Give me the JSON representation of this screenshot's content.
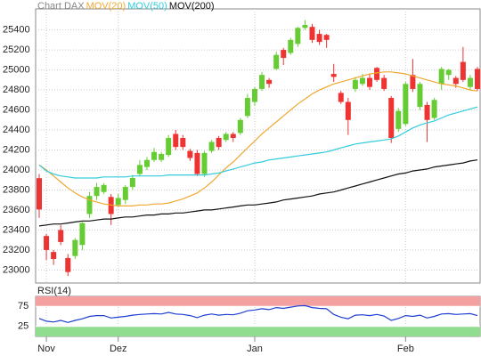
{
  "chart_data": [
    {
      "type": "candlestick",
      "title": "Chart DAX",
      "categories": [
        null,
        "Nov",
        null,
        null,
        null,
        null,
        null,
        null,
        null,
        null,
        null,
        "Dez",
        null,
        null,
        null,
        null,
        null,
        null,
        null,
        null,
        null,
        null,
        null,
        null,
        null,
        null,
        null,
        null,
        null,
        null,
        "Jan",
        null,
        null,
        null,
        null,
        null,
        null,
        null,
        null,
        null,
        null,
        null,
        null,
        null,
        null,
        null,
        null,
        null,
        null,
        null,
        null,
        "Feb",
        null,
        null,
        null,
        null,
        null,
        null,
        null,
        null,
        null,
        null
      ],
      "open": [
        23918,
        23340,
        23180,
        23400,
        23120,
        23140,
        23250,
        23560,
        23740,
        23780,
        23730,
        23650,
        23700,
        23830,
        23960,
        24030,
        24100,
        24100,
        24150,
        24360,
        24320,
        24190,
        24170,
        23960,
        24190,
        24320,
        24300,
        24360,
        24370,
        24540,
        24680,
        24810,
        24900,
        25010,
        25200,
        25170,
        25260,
        25420,
        25430,
        25360,
        25350,
        24960,
        24770,
        24680,
        24810,
        24860,
        24920,
        25020,
        24920,
        24720,
        24410,
        24460,
        24950,
        24630,
        24650,
        24520,
        24860,
        24950,
        24920,
        25080,
        24830,
        25010
      ],
      "high": [
        23960,
        23360,
        23200,
        23450,
        23160,
        23320,
        23480,
        23780,
        23870,
        23870,
        23760,
        23760,
        23850,
        23950,
        24100,
        24130,
        24220,
        24180,
        24350,
        24400,
        24350,
        24210,
        24200,
        24190,
        24300,
        24340,
        24380,
        24380,
        24520,
        24760,
        24830,
        24980,
        24920,
        25180,
        25220,
        25320,
        25430,
        25500,
        25460,
        25400,
        25360,
        25060,
        24790,
        24720,
        24930,
        24960,
        24960,
        25030,
        24950,
        24740,
        24620,
        24880,
        25110,
        24880,
        24680,
        24720,
        25030,
        25010,
        24940,
        25230,
        24950,
        25030
      ],
      "low": [
        23520,
        23100,
        23050,
        23250,
        22940,
        23110,
        23200,
        23520,
        23700,
        23760,
        23450,
        23630,
        23660,
        23800,
        23940,
        24000,
        24080,
        24080,
        24130,
        24200,
        24200,
        24090,
        23940,
        23930,
        24170,
        24200,
        24280,
        24280,
        24350,
        24520,
        24640,
        24790,
        24820,
        25000,
        25050,
        25150,
        25230,
        25400,
        25270,
        25250,
        25220,
        24880,
        24660,
        24350,
        24780,
        24840,
        24800,
        24880,
        24790,
        24270,
        24380,
        24440,
        24780,
        24600,
        24280,
        24500,
        24800,
        24900,
        24820,
        24880,
        24800,
        24790
      ],
      "close": [
        23605,
        23200,
        23110,
        23280,
        22980,
        23300,
        23470,
        23740,
        23830,
        23850,
        23560,
        23720,
        23830,
        23920,
        24050,
        24100,
        24180,
        24160,
        24320,
        24230,
        24230,
        24120,
        23960,
        24170,
        24280,
        24230,
        24360,
        24320,
        24500,
        24720,
        24810,
        24950,
        24860,
        25150,
        25120,
        25300,
        25420,
        25450,
        25300,
        25280,
        25300,
        24930,
        24680,
        24500,
        24900,
        24920,
        24830,
        24900,
        24810,
        24320,
        24590,
        24860,
        24810,
        24860,
        24500,
        24700,
        25010,
        25000,
        24860,
        24900,
        24920,
        24810
      ],
      "up_color": "#66cc33",
      "down_color": "#ee3333",
      "series": [
        {
          "name": "MOV(20)",
          "color": "#f0a830",
          "values": [
            24050,
            24000,
            23940,
            23880,
            23820,
            23770,
            23730,
            23700,
            23680,
            23660,
            23650,
            23640,
            23640,
            23640,
            23650,
            23650,
            23660,
            23660,
            23670,
            23690,
            23710,
            23740,
            23770,
            23820,
            23880,
            23950,
            24020,
            24080,
            24150,
            24220,
            24290,
            24360,
            24420,
            24480,
            24540,
            24600,
            24660,
            24710,
            24760,
            24800,
            24830,
            24860,
            24880,
            24900,
            24920,
            24940,
            24960,
            24970,
            24980,
            24980,
            24970,
            24960,
            24940,
            24920,
            24900,
            24880,
            24860,
            24850,
            24840,
            24820,
            24800,
            24790
          ]
        },
        {
          "name": "MOV(50)",
          "color": "#33ccdd",
          "values": [
            24050,
            23990,
            23960,
            23940,
            23930,
            23920,
            23920,
            23920,
            23920,
            23930,
            23930,
            23930,
            23930,
            23940,
            23940,
            23940,
            23940,
            23940,
            23950,
            23950,
            23950,
            23950,
            23950,
            23950,
            23960,
            23970,
            23990,
            24010,
            24030,
            24050,
            24070,
            24080,
            24100,
            24110,
            24120,
            24130,
            24140,
            24150,
            24160,
            24170,
            24180,
            24200,
            24220,
            24240,
            24260,
            24270,
            24280,
            24290,
            24300,
            24310,
            24340,
            24380,
            24420,
            24450,
            24470,
            24490,
            24520,
            24550,
            24570,
            24590,
            24610,
            24630
          ]
        },
        {
          "name": "MOV(200)",
          "color": "#111111",
          "values": [
            23440,
            23450,
            23460,
            23460,
            23470,
            23480,
            23490,
            23490,
            23500,
            23510,
            23510,
            23520,
            23530,
            23530,
            23540,
            23550,
            23550,
            23560,
            23560,
            23570,
            23570,
            23580,
            23590,
            23600,
            23600,
            23610,
            23620,
            23630,
            23640,
            23650,
            23650,
            23660,
            23670,
            23680,
            23700,
            23710,
            23720,
            23730,
            23740,
            23760,
            23770,
            23780,
            23800,
            23820,
            23840,
            23860,
            23880,
            23900,
            23920,
            23940,
            23960,
            23970,
            23990,
            24000,
            24010,
            24030,
            24040,
            24050,
            24060,
            24070,
            24090,
            24100
          ]
        }
      ],
      "ylim": [
        22870,
        25610
      ],
      "yticks": [
        23000,
        23200,
        23400,
        23600,
        23800,
        24000,
        24200,
        24400,
        24600,
        24800,
        25000,
        25200,
        25400
      ],
      "grid": true
    },
    {
      "type": "line",
      "title": "RSI(14)",
      "color": "#1f3fd0",
      "values": [
        45,
        38,
        36,
        40,
        35,
        40,
        44,
        50,
        52,
        52,
        46,
        48,
        50,
        53,
        55,
        56,
        57,
        56,
        60,
        56,
        55,
        52,
        47,
        53,
        56,
        53,
        55,
        54,
        58,
        64,
        66,
        69,
        67,
        72,
        70,
        73,
        76,
        77,
        72,
        70,
        69,
        55,
        48,
        44,
        53,
        54,
        52,
        55,
        51,
        40,
        45,
        52,
        50,
        53,
        46,
        50,
        56,
        57,
        55,
        56,
        57,
        52
      ],
      "ylim": [
        0,
        100
      ],
      "yticks": [
        25,
        75
      ],
      "bands": [
        {
          "from": 75,
          "to": 100,
          "color": "#f4a0a0"
        },
        {
          "from": 0,
          "to": 25,
          "color": "#90dd90"
        }
      ],
      "grid": true
    }
  ]
}
